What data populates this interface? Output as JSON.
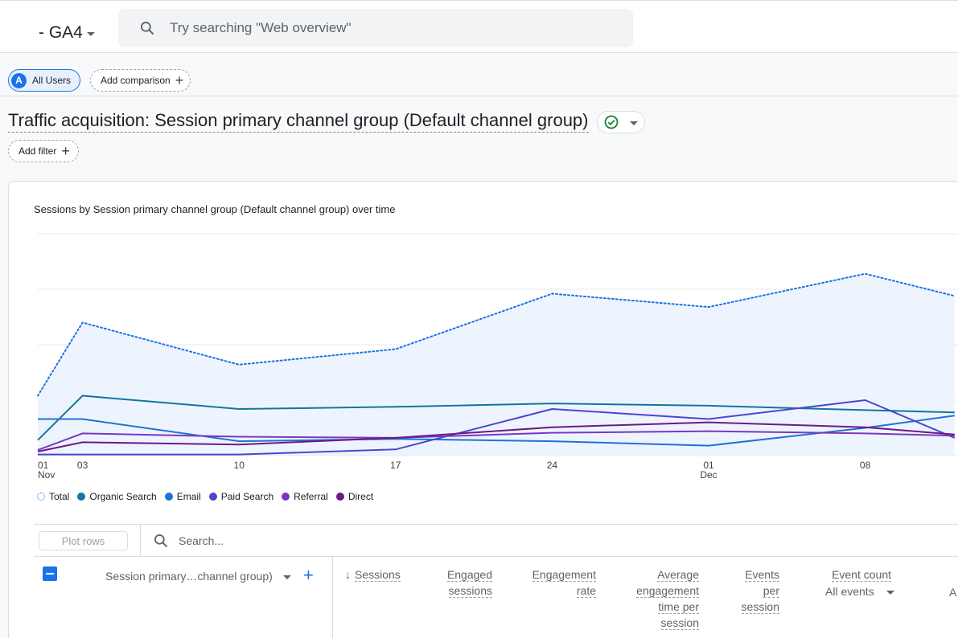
{
  "topbar": {
    "property_label": "- GA4",
    "search_placeholder": "Try searching \"Web overview\""
  },
  "comparison": {
    "segment_avatar": "A",
    "segment_label": "All Users",
    "add_comparison_label": "Add comparison"
  },
  "report": {
    "title": "Traffic acquisition: Session primary channel group (Default channel group)",
    "add_filter_label": "Add filter"
  },
  "chart_data": {
    "type": "line",
    "title": "Sessions by Session primary channel group (Default channel group) over time",
    "x_tick_labels": [
      {
        "day": "01",
        "month": "Nov"
      },
      {
        "day": "03",
        "month": ""
      },
      {
        "day": "10",
        "month": ""
      },
      {
        "day": "17",
        "month": ""
      },
      {
        "day": "24",
        "month": ""
      },
      {
        "day": "01",
        "month": "Dec"
      },
      {
        "day": "08",
        "month": ""
      }
    ],
    "x": [
      "Nov 01",
      "Nov 03",
      "Nov 10",
      "Nov 17",
      "Nov 24",
      "Dec 01",
      "Dec 08",
      "Dec 12"
    ],
    "x_days": [
      0,
      2,
      9,
      16,
      23,
      30,
      37,
      41
    ],
    "ylim": [
      0,
      100
    ],
    "grid": true,
    "legend_position": "bottom-left",
    "series": [
      {
        "name": "Total",
        "color": "#1a73e8",
        "style": "dotted",
        "area": true,
        "values": [
          27,
          60,
          41,
          48,
          73,
          67,
          82,
          72
        ]
      },
      {
        "name": "Organic Search",
        "color": "#12769e",
        "style": "solid",
        "values": [
          7,
          27,
          21,
          22,
          23.5,
          22.5,
          20.5,
          19.5
        ]
      },
      {
        "name": "Email",
        "color": "#1e73d8",
        "style": "solid",
        "values": [
          16.5,
          16.5,
          6.5,
          7.5,
          6.5,
          4.5,
          12.5,
          18
        ]
      },
      {
        "name": "Paid Search",
        "color": "#4b46cf",
        "style": "solid",
        "values": [
          0.5,
          0.5,
          0.5,
          2.8,
          21,
          16.5,
          25,
          8
        ]
      },
      {
        "name": "Referral",
        "color": "#7b37c4",
        "style": "solid",
        "values": [
          2.5,
          10,
          8.5,
          8,
          10.3,
          11,
          10,
          9
        ]
      },
      {
        "name": "Direct",
        "color": "#6b1a86",
        "style": "solid",
        "values": [
          1.8,
          6,
          5,
          8,
          12.8,
          15,
          12.8,
          9.5
        ]
      }
    ]
  },
  "table": {
    "plot_rows_label": "Plot rows",
    "search_placeholder": "Search...",
    "dimension_label": "Session primary…channel group)",
    "columns": [
      {
        "label": "Sessions",
        "sorted": true
      },
      {
        "label": "Engaged sessions"
      },
      {
        "label": "Engagement rate"
      },
      {
        "label": "Average engagement time per session"
      },
      {
        "label": "Events per session"
      },
      {
        "label": "Event count"
      }
    ],
    "event_selector": "All events",
    "clipped_header_partial": "A"
  }
}
